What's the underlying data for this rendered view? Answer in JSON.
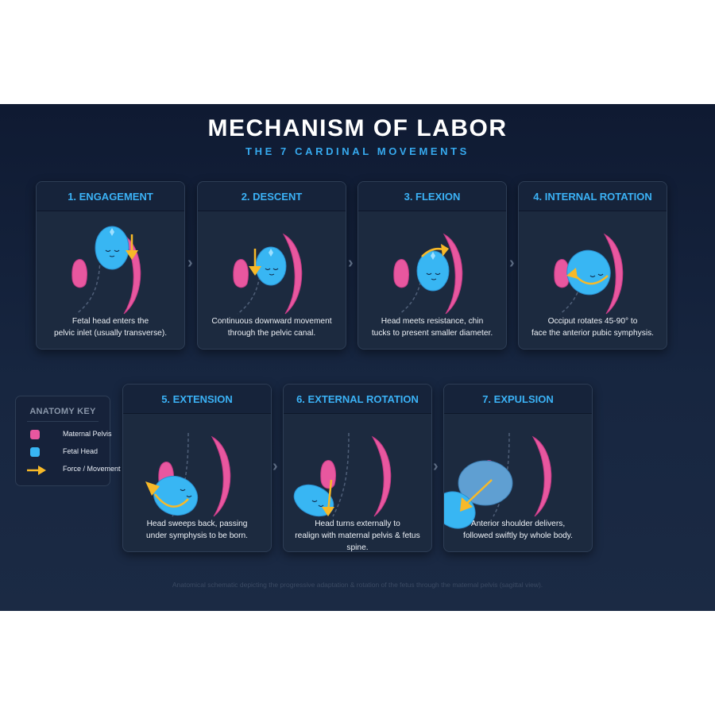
{
  "header": {
    "title": "MECHANISM OF LABOR",
    "subtitle": "THE 7 CARDINAL MOVEMENTS"
  },
  "colors": {
    "pelvis": "#e8579f",
    "head": "#38b6f3",
    "force": "#f7b928",
    "accent": "#36a9ee"
  },
  "stages": [
    {
      "title": "1. ENGAGEMENT",
      "lines": [
        "Fetal head enters the",
        "pelvic inlet (usually transverse)."
      ]
    },
    {
      "title": "2. DESCENT",
      "lines": [
        "Continuous downward movement",
        "through the pelvic canal."
      ]
    },
    {
      "title": "3. FLEXION",
      "lines": [
        "Head meets resistance, chin",
        "tucks to present smaller diameter."
      ]
    },
    {
      "title": "4. INTERNAL ROTATION",
      "lines": [
        "Occiput rotates 45-90° to",
        "face the anterior pubic symphysis."
      ]
    },
    {
      "title": "5. EXTENSION",
      "lines": [
        "Head sweeps back, passing",
        "under symphysis to be born."
      ]
    },
    {
      "title": "6. EXTERNAL ROTATION",
      "lines": [
        "Head turns externally to",
        "realign with maternal pelvis & fetus spine."
      ]
    },
    {
      "title": "7. EXPULSION",
      "lines": [
        "Anterior shoulder delivers,",
        "followed swiftly by whole body."
      ]
    }
  ],
  "chevron_glyph": "›",
  "anatomy_key": {
    "title": "ANATOMY KEY",
    "items": [
      {
        "label": "Maternal Pelvis",
        "icon": "pink-swatch"
      },
      {
        "label": "Fetal Head",
        "icon": "blue-swatch"
      },
      {
        "label": "Force / Movement",
        "icon": "arrow-icon"
      }
    ]
  },
  "footnote": "Anatomical schematic depicting the progressive adaptation & rotation of the fetus through the maternal pelvis (sagittal view)."
}
